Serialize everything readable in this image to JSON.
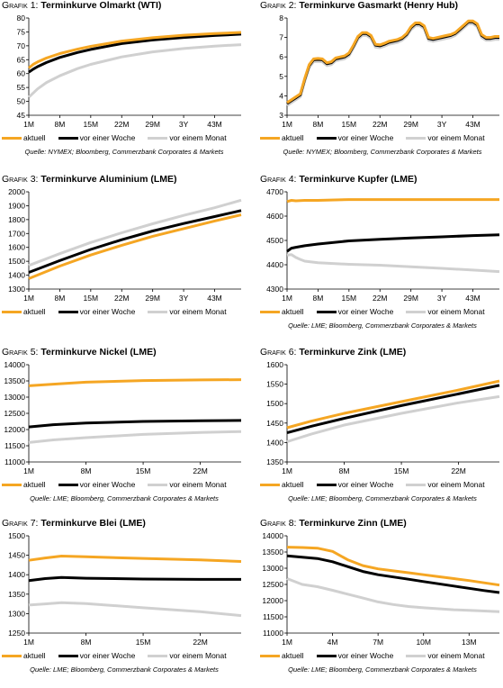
{
  "colors": {
    "aktuell": "#f5a623",
    "vor_einer_woche": "#000000",
    "vor_einem_monat": "#d0d0d0"
  },
  "chart_data": [
    {
      "type": "line",
      "title_prefix": "Grafik 1:",
      "title": "Terminkurve Olmarkt (WTI)",
      "xlabel": "",
      "ylabel": "",
      "x_ticks": [
        "1M",
        "8M",
        "15M",
        "22M",
        "29M",
        "3Y",
        "43M"
      ],
      "x_range": [
        1,
        49
      ],
      "ylim": [
        45,
        80
      ],
      "y_ticks": [
        45,
        50,
        55,
        60,
        65,
        70,
        75,
        80
      ],
      "grid": false,
      "legend": "bottom",
      "series": [
        {
          "name": "aktuell",
          "x": [
            1,
            2,
            3,
            5,
            8,
            12,
            15,
            22,
            29,
            36,
            43,
            49
          ],
          "values": [
            62.0,
            63.3,
            64.2,
            65.6,
            67.2,
            68.8,
            69.8,
            71.7,
            72.9,
            73.8,
            74.4,
            74.8
          ]
        },
        {
          "name": "vor einer Woche",
          "x": [
            1,
            2,
            3,
            5,
            8,
            12,
            15,
            22,
            29,
            36,
            43,
            49
          ],
          "values": [
            60.5,
            61.6,
            62.5,
            64.0,
            65.8,
            67.6,
            68.7,
            70.8,
            72.1,
            73.0,
            73.7,
            74.2
          ]
        },
        {
          "name": "vor einem Monat",
          "x": [
            1,
            2,
            3,
            5,
            8,
            12,
            15,
            22,
            29,
            36,
            43,
            49
          ],
          "values": [
            51.5,
            53.0,
            54.5,
            56.8,
            59.2,
            61.8,
            63.3,
            66.0,
            67.8,
            69.0,
            69.9,
            70.4
          ]
        }
      ],
      "source": "Quelle: NYMEX; Bloomberg, Commerzbank Corporates & Markets"
    },
    {
      "type": "line",
      "title_prefix": "Grafik 2:",
      "title": "Terminkurve Gasmarkt (Henry Hub)",
      "xlabel": "",
      "ylabel": "",
      "x_ticks": [
        "1M",
        "8M",
        "15M",
        "22M",
        "29M",
        "3Y",
        "43M"
      ],
      "x_range": [
        1,
        49
      ],
      "ylim": [
        3.0,
        8.0
      ],
      "y_ticks": [
        3.0,
        4.0,
        5.0,
        6.0,
        7.0,
        8.0
      ],
      "grid": false,
      "legend": "bottom",
      "series": [
        {
          "name": "aktuell",
          "x": [
            1,
            2,
            3,
            4,
            5,
            6,
            7,
            8,
            9,
            10,
            11,
            12,
            13,
            14,
            15,
            16,
            17,
            18,
            19,
            20,
            21,
            22,
            23,
            24,
            25,
            26,
            27,
            28,
            29,
            30,
            31,
            32,
            33,
            34,
            35,
            36,
            37,
            38,
            39,
            40,
            41,
            42,
            43,
            44,
            45,
            46,
            47,
            48,
            49
          ],
          "values": [
            3.65,
            3.8,
            3.95,
            4.1,
            4.9,
            5.6,
            5.9,
            5.92,
            5.9,
            5.7,
            5.75,
            5.95,
            6.0,
            6.05,
            6.2,
            6.6,
            7.05,
            7.25,
            7.25,
            7.1,
            6.65,
            6.62,
            6.7,
            6.8,
            6.85,
            6.9,
            7.0,
            7.2,
            7.55,
            7.75,
            7.75,
            7.6,
            7.0,
            6.95,
            7.0,
            7.05,
            7.1,
            7.15,
            7.25,
            7.45,
            7.65,
            7.85,
            7.85,
            7.7,
            7.15,
            7.0,
            7.0,
            7.05,
            7.05
          ]
        },
        {
          "name": "vor einer Woche",
          "x": [
            1,
            2,
            3,
            4,
            5,
            6,
            7,
            8,
            9,
            10,
            11,
            12,
            13,
            14,
            15,
            16,
            17,
            18,
            19,
            20,
            21,
            22,
            23,
            24,
            25,
            26,
            27,
            28,
            29,
            30,
            31,
            32,
            33,
            34,
            35,
            36,
            37,
            38,
            39,
            40,
            41,
            42,
            43,
            44,
            45,
            46,
            47,
            48,
            49
          ],
          "values": [
            3.6,
            3.75,
            3.9,
            4.05,
            4.85,
            5.55,
            5.85,
            5.87,
            5.85,
            5.65,
            5.7,
            5.9,
            5.95,
            6.0,
            6.15,
            6.55,
            7.0,
            7.2,
            7.2,
            7.05,
            6.6,
            6.57,
            6.65,
            6.75,
            6.8,
            6.85,
            6.95,
            7.15,
            7.5,
            7.7,
            7.7,
            7.55,
            6.95,
            6.9,
            6.95,
            7.0,
            7.05,
            7.1,
            7.2,
            7.4,
            7.6,
            7.8,
            7.8,
            7.65,
            7.1,
            6.95,
            6.95,
            7.0,
            7.0
          ]
        },
        {
          "name": "vor einem Monat",
          "x": [
            1,
            2,
            3,
            4,
            5,
            6,
            7,
            8,
            9,
            10,
            11,
            12,
            13,
            14,
            15,
            16,
            17,
            18,
            19,
            20,
            21,
            22,
            23,
            24,
            25,
            26,
            27,
            28,
            29,
            30,
            31,
            32,
            33,
            34,
            35,
            36,
            37,
            38,
            39,
            40,
            41,
            42,
            43,
            44,
            45,
            46,
            47,
            48,
            49
          ],
          "values": [
            3.5,
            3.65,
            3.8,
            3.95,
            4.75,
            5.45,
            5.75,
            5.77,
            5.75,
            5.55,
            5.6,
            5.8,
            5.85,
            5.9,
            6.05,
            6.45,
            6.9,
            7.1,
            7.1,
            6.95,
            6.5,
            6.47,
            6.55,
            6.65,
            6.7,
            6.75,
            6.85,
            7.05,
            7.4,
            7.6,
            7.6,
            7.45,
            6.85,
            6.8,
            6.85,
            6.9,
            6.95,
            7.0,
            7.1,
            7.3,
            7.5,
            7.7,
            7.7,
            7.55,
            7.0,
            6.85,
            6.85,
            6.9,
            6.9
          ]
        }
      ],
      "source": "Quelle: NYMEX; Bloomberg, Commerzbank Corporates & Markets"
    },
    {
      "type": "line",
      "title_prefix": "Grafik 3:",
      "title": "Terminkurve Aluminium (LME)",
      "xlabel": "",
      "ylabel": "",
      "x_ticks": [
        "1M",
        "8M",
        "15M",
        "22M",
        "29M",
        "3Y",
        "43M"
      ],
      "x_range": [
        1,
        49
      ],
      "ylim": [
        1300,
        2000
      ],
      "y_ticks": [
        1300,
        1400,
        1500,
        1600,
        1700,
        1800,
        1900,
        2000
      ],
      "grid": false,
      "legend": "bottom",
      "series": [
        {
          "name": "aktuell",
          "x": [
            1,
            8,
            15,
            22,
            29,
            36,
            43,
            49
          ],
          "values": [
            1375,
            1465,
            1545,
            1615,
            1680,
            1735,
            1790,
            1835
          ]
        },
        {
          "name": "vor einer Woche",
          "x": [
            1,
            8,
            15,
            22,
            29,
            36,
            43,
            49
          ],
          "values": [
            1420,
            1505,
            1585,
            1655,
            1718,
            1772,
            1822,
            1865
          ]
        },
        {
          "name": "vor einem Monat",
          "x": [
            1,
            8,
            15,
            22,
            29,
            36,
            43,
            49
          ],
          "values": [
            1470,
            1555,
            1635,
            1705,
            1770,
            1830,
            1885,
            1940
          ]
        }
      ],
      "source": ""
    },
    {
      "type": "line",
      "title_prefix": "Grafik 4:",
      "title": "Terminkurve Kupfer (LME)",
      "xlabel": "",
      "ylabel": "",
      "x_ticks": [
        "1M",
        "8M",
        "15M",
        "22M",
        "29M",
        "3Y",
        "43M"
      ],
      "x_range": [
        1,
        49
      ],
      "ylim": [
        4300,
        4700
      ],
      "y_ticks": [
        4300,
        4400,
        4500,
        4600,
        4700
      ],
      "grid": false,
      "legend": "bottom",
      "series": [
        {
          "name": "aktuell",
          "x": [
            1,
            2,
            3,
            5,
            8,
            15,
            22,
            29,
            36,
            43,
            49
          ],
          "values": [
            4660,
            4665,
            4663,
            4665,
            4665,
            4668,
            4668,
            4668,
            4668,
            4668,
            4668
          ]
        },
        {
          "name": "vor einer Woche",
          "x": [
            1,
            2,
            3,
            5,
            8,
            15,
            22,
            29,
            36,
            43,
            49
          ],
          "values": [
            4455,
            4468,
            4472,
            4478,
            4485,
            4498,
            4505,
            4510,
            4515,
            4520,
            4523
          ]
        },
        {
          "name": "vor einem Monat",
          "x": [
            1,
            2,
            3,
            4,
            5,
            8,
            15,
            22,
            29,
            36,
            43,
            49
          ],
          "values": [
            4440,
            4442,
            4430,
            4422,
            4415,
            4408,
            4402,
            4398,
            4392,
            4385,
            4378,
            4372
          ]
        }
      ],
      "source": "Quelle: LME; Bloomberg, Commerzbank Corporates & Markets"
    },
    {
      "type": "line",
      "title_prefix": "Grafik 5:",
      "title": "Terminkurve Nickel (LME)",
      "xlabel": "",
      "ylabel": "",
      "x_ticks": [
        "1M",
        "8M",
        "15M",
        "22M"
      ],
      "x_range": [
        1,
        27
      ],
      "ylim": [
        11000,
        14000
      ],
      "y_ticks": [
        11000,
        11500,
        12000,
        12500,
        13000,
        13500,
        14000
      ],
      "grid": false,
      "legend": "bottom",
      "series": [
        {
          "name": "aktuell",
          "x": [
            1,
            4,
            8,
            15,
            22,
            27
          ],
          "values": [
            13350,
            13400,
            13460,
            13510,
            13530,
            13540
          ]
        },
        {
          "name": "vor einer Woche",
          "x": [
            1,
            4,
            8,
            15,
            22,
            27
          ],
          "values": [
            12080,
            12150,
            12200,
            12250,
            12270,
            12280
          ]
        },
        {
          "name": "vor einem Monat",
          "x": [
            1,
            4,
            8,
            15,
            22,
            27
          ],
          "values": [
            11600,
            11680,
            11750,
            11850,
            11910,
            11940
          ]
        }
      ],
      "source": "Quelle: LME; Bloomberg, Commerzbank Corporates & Markets"
    },
    {
      "type": "line",
      "title_prefix": "Grafik 6:",
      "title": "Terminkurve Zink (LME)",
      "xlabel": "",
      "ylabel": "",
      "x_ticks": [
        "1M",
        "8M",
        "15M",
        "22M"
      ],
      "x_range": [
        1,
        27
      ],
      "ylim": [
        1350,
        1600
      ],
      "y_ticks": [
        1350,
        1400,
        1450,
        1500,
        1550,
        1600
      ],
      "grid": false,
      "legend": "bottom",
      "series": [
        {
          "name": "aktuell",
          "x": [
            1,
            4,
            8,
            15,
            22,
            27
          ],
          "values": [
            1438,
            1455,
            1475,
            1505,
            1535,
            1558
          ]
        },
        {
          "name": "vor einer Woche",
          "x": [
            1,
            4,
            8,
            15,
            22,
            27
          ],
          "values": [
            1425,
            1442,
            1462,
            1495,
            1525,
            1547
          ]
        },
        {
          "name": "vor einem Monat",
          "x": [
            1,
            4,
            8,
            15,
            22,
            27
          ],
          "values": [
            1402,
            1422,
            1445,
            1475,
            1502,
            1518
          ]
        }
      ],
      "source": "Quelle: LME; Bloomberg, Commerzbank Corporates & Markets"
    },
    {
      "type": "line",
      "title_prefix": "Grafik 7:",
      "title": "Terminkurve Blei (LME)",
      "xlabel": "",
      "ylabel": "",
      "x_ticks": [
        "1M",
        "8M",
        "15M",
        "22M"
      ],
      "x_range": [
        1,
        27
      ],
      "ylim": [
        1250,
        1500
      ],
      "y_ticks": [
        1250,
        1300,
        1350,
        1400,
        1450,
        1500
      ],
      "grid": false,
      "legend": "bottom",
      "series": [
        {
          "name": "aktuell",
          "x": [
            1,
            3,
            5,
            8,
            15,
            22,
            27
          ],
          "values": [
            1437,
            1443,
            1448,
            1446,
            1442,
            1438,
            1434
          ]
        },
        {
          "name": "vor einer Woche",
          "x": [
            1,
            3,
            5,
            8,
            15,
            22,
            27
          ],
          "values": [
            1385,
            1390,
            1393,
            1391,
            1389,
            1388,
            1388
          ]
        },
        {
          "name": "vor einem Monat",
          "x": [
            1,
            3,
            5,
            8,
            15,
            22,
            27
          ],
          "values": [
            1322,
            1325,
            1328,
            1326,
            1315,
            1305,
            1295
          ]
        }
      ],
      "source": "Quelle: LME; Bloomberg, Commerzbank Corporates & Markets"
    },
    {
      "type": "line",
      "title_prefix": "Grafik 8:",
      "title": "Terminkurve Zinn (LME)",
      "xlabel": "",
      "ylabel": "",
      "x_ticks": [
        "1M",
        "4M",
        "7M",
        "10M",
        "13M"
      ],
      "x_range": [
        1,
        15
      ],
      "ylim": [
        11000,
        14000
      ],
      "y_ticks": [
        11000,
        11500,
        12000,
        12500,
        13000,
        13500,
        14000
      ],
      "grid": false,
      "legend": "bottom",
      "series": [
        {
          "name": "aktuell",
          "x": [
            1,
            2,
            3,
            4,
            5,
            6,
            7,
            8,
            9,
            10,
            11,
            12,
            13,
            14,
            15
          ],
          "values": [
            13650,
            13640,
            13620,
            13520,
            13260,
            13080,
            12980,
            12920,
            12860,
            12800,
            12740,
            12680,
            12620,
            12550,
            12480
          ]
        },
        {
          "name": "vor einer Woche",
          "x": [
            1,
            2,
            3,
            4,
            5,
            6,
            7,
            8,
            9,
            10,
            11,
            12,
            13,
            14,
            15
          ],
          "values": [
            13380,
            13340,
            13300,
            13200,
            13050,
            12900,
            12800,
            12730,
            12660,
            12590,
            12520,
            12450,
            12380,
            12310,
            12250
          ]
        },
        {
          "name": "vor einem Monat",
          "x": [
            1,
            2,
            3,
            4,
            5,
            6,
            7,
            8,
            9,
            10,
            11,
            12,
            13,
            14,
            15
          ],
          "values": [
            12680,
            12500,
            12430,
            12320,
            12200,
            12080,
            11960,
            11880,
            11820,
            11780,
            11750,
            11720,
            11700,
            11680,
            11660
          ]
        }
      ],
      "source": "Quelle: LME; Bloomberg, Commerzbank Corporates & Markets"
    }
  ]
}
